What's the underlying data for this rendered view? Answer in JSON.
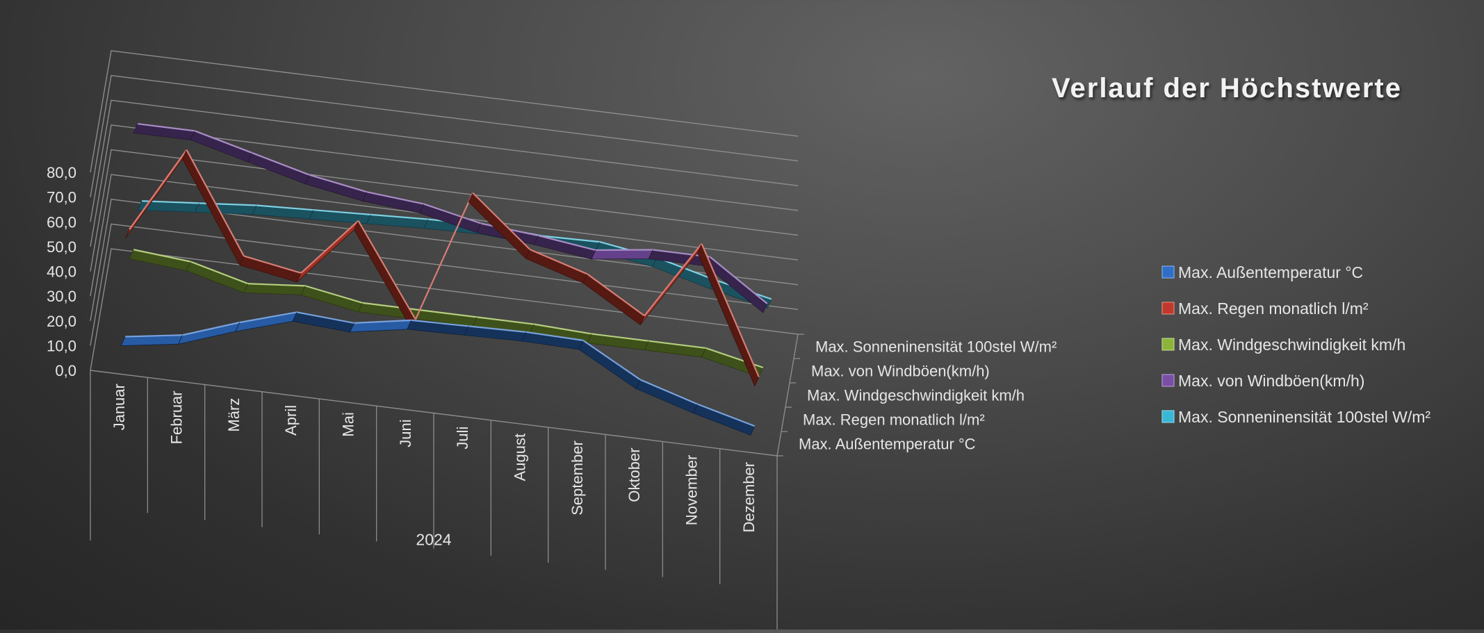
{
  "chart_data": {
    "type": "line",
    "variant": "3d-line",
    "title": "Verlauf der Höchstwerte",
    "group_label": "2024",
    "categories": [
      "Januar",
      "Februar",
      "März",
      "April",
      "Mai",
      "Juni",
      "Juli",
      "August",
      "September",
      "Oktober",
      "November",
      "Dezember"
    ],
    "ylim": [
      0,
      80
    ],
    "yticks": [
      "0,0",
      "10,0",
      "20,0",
      "30,0",
      "40,0",
      "50,0",
      "60,0",
      "70,0",
      "80,0"
    ],
    "grid": true,
    "legend_position": "right",
    "series": [
      {
        "name": "Max. Außentemperatur °C",
        "color": "#2f6fc8",
        "values": [
          6.5,
          10.0,
          18.0,
          25.0,
          23.5,
          27.5,
          28.0,
          28.5,
          28.0,
          15.0,
          8.0,
          2.0
        ]
      },
      {
        "name": "Max. Regen monatlich l/m²",
        "color": "#c0392b",
        "values": [
          40.0,
          75.0,
          35.0,
          31.0,
          55.0,
          18.0,
          72.0,
          52.0,
          45.0,
          31.0,
          63.0,
          12.0
        ]
      },
      {
        "name": "Max. Windgeschwindigkeit km/h",
        "color": "#8db43a",
        "values": [
          22.0,
          20.0,
          14.0,
          16.0,
          12.0,
          12.0,
          12.0,
          12.0,
          11.0,
          11.0,
          11.0,
          6.0
        ]
      },
      {
        "name": "Max. von Windböen(km/h)",
        "color": "#7a4fa8",
        "values": [
          63.0,
          63.0,
          57.0,
          51.0,
          47.0,
          45.0,
          40.0,
          38.0,
          35.0,
          38.0,
          38.0,
          22.0
        ]
      },
      {
        "name": "Max. Sonneninensität 100stel W/m²",
        "color": "#39b7d6",
        "values": [
          22.0,
          24.0,
          26.0,
          27.0,
          28.0,
          29.0,
          29.5,
          28.0,
          28.5,
          25.0,
          19.0,
          14.0
        ]
      }
    ]
  }
}
